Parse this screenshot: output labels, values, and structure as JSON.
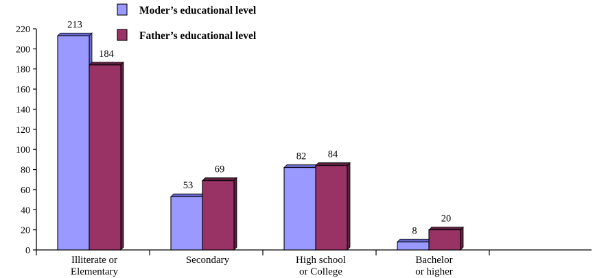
{
  "chart_data": {
    "type": "bar",
    "title": "",
    "xlabel": "",
    "ylabel": "",
    "categories": [
      [
        "Illiterate or",
        "Elementary"
      ],
      [
        "Secondary"
      ],
      [
        "High school",
        "or College"
      ],
      [
        "Bachelor",
        "or higher"
      ]
    ],
    "series": [
      {
        "name": "Moder’s educational level",
        "values": [
          213,
          53,
          82,
          8
        ],
        "color": "#9999ff",
        "shadow": "#6666cc"
      },
      {
        "name": "Father’s educational level",
        "values": [
          184,
          69,
          84,
          20
        ],
        "color": "#993366",
        "shadow": "#5c1f3d"
      }
    ],
    "ylim": [
      0,
      220
    ],
    "yticks": [
      0,
      20,
      40,
      60,
      80,
      100,
      120,
      140,
      160,
      180,
      200,
      220
    ],
    "grid": false,
    "legend_position": "top"
  }
}
